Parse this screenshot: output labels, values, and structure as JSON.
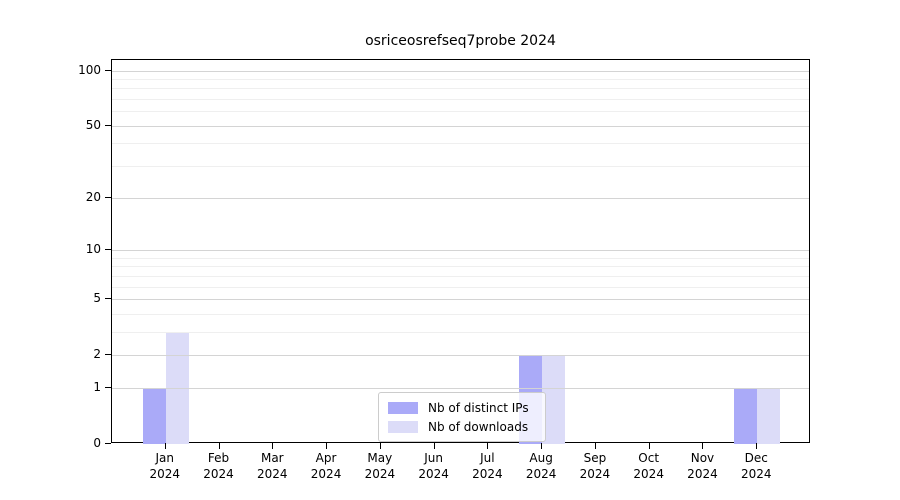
{
  "chart_data": {
    "type": "bar",
    "title": "osriceosrefseq7probe 2024",
    "year_label": "2024",
    "categories": [
      "Jan",
      "Feb",
      "Mar",
      "Apr",
      "May",
      "Jun",
      "Jul",
      "Aug",
      "Sep",
      "Oct",
      "Nov",
      "Dec"
    ],
    "series": [
      {
        "name": "Nb of distinct IPs",
        "color": "#aaaaf8",
        "values": [
          1,
          0,
          0,
          0,
          0,
          0,
          0,
          2,
          0,
          0,
          0,
          1
        ]
      },
      {
        "name": "Nb of downloads",
        "color": "#dcdcf8",
        "values": [
          3,
          0,
          0,
          0,
          0,
          0,
          0,
          2,
          0,
          0,
          0,
          1
        ]
      }
    ],
    "xlabel": "",
    "ylabel": "",
    "yscale": "log1p",
    "ylim": [
      0,
      114
    ],
    "y_major_ticks": [
      0,
      1,
      2,
      5,
      10,
      20,
      50,
      100
    ],
    "y_minor_gridlines": [
      3,
      4,
      6,
      7,
      8,
      9,
      30,
      40,
      60,
      70,
      80,
      90
    ],
    "grid": "horizontal",
    "legend_position": "inside-bottom-center"
  },
  "colors": {
    "background": "#ffffff",
    "spine": "#000000",
    "major_grid": "#d4d4d4",
    "minor_grid": "#efefef",
    "legend_border": "#cccccc"
  }
}
